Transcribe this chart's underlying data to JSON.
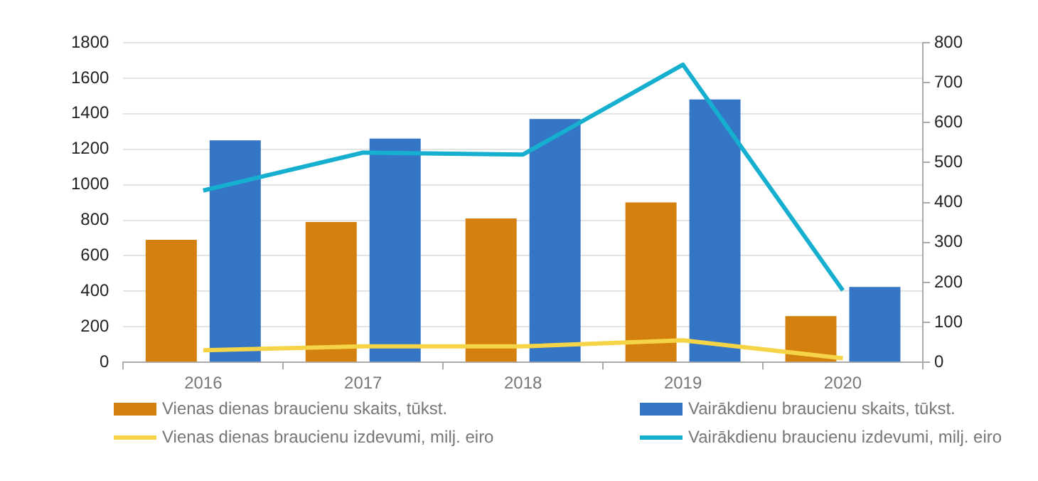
{
  "chart_data": {
    "type": "bar",
    "categories": [
      "2016",
      "2017",
      "2018",
      "2019",
      "2020"
    ],
    "series": [
      {
        "name": "Vienas dienas braucienu skaits, tūkst.",
        "color": "#d4800f",
        "values": [
          690,
          790,
          810,
          900,
          260
        ]
      },
      {
        "name": "Vairākdienu braucienu skaits, tūkst.",
        "color": "#3575c5",
        "values": [
          1250,
          1260,
          1370,
          1480,
          425
        ]
      },
      {
        "name": "Vienas dienas braucienu izdevumi, milj. eiro",
        "type": "line",
        "axis": "y2",
        "color": "#f5d547",
        "values": [
          30,
          40,
          40,
          55,
          10
        ]
      },
      {
        "name": "Vairākdienu braucienu izdevumi, milj. eiro",
        "type": "line",
        "axis": "y2",
        "color": "#16afd0",
        "values": [
          430,
          525,
          520,
          745,
          180
        ]
      }
    ],
    "ylim": [
      0,
      1800
    ],
    "yticks": [
      0,
      200,
      400,
      600,
      800,
      1000,
      1200,
      1400,
      1600,
      1800
    ],
    "y2lim": [
      0,
      800
    ],
    "y2ticks": [
      0,
      100,
      200,
      300,
      400,
      500,
      600,
      700,
      800
    ],
    "grid": "y",
    "legend": "bottom"
  }
}
